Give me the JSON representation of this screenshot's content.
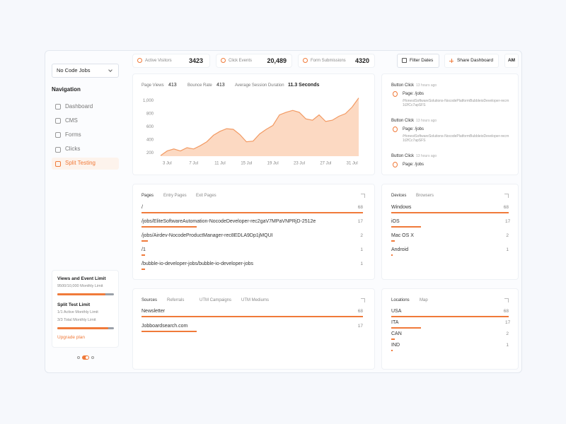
{
  "sidebar": {
    "workspace": "No Code Jobs",
    "nav_heading": "Navigation",
    "nav": [
      "Dashboard",
      "CMS",
      "Forms",
      "Clicks",
      "Split Testing"
    ],
    "active_nav": 4,
    "limits": [
      {
        "title": "Views and Event Limit",
        "items": [
          {
            "label": "9500/10,000 Monthly Limit",
            "used": 9500,
            "limit": 10000
          }
        ]
      },
      {
        "title": "Split Test Limit",
        "items": [
          {
            "label": "1/1 Active Monthly Limit"
          },
          {
            "label": "3/3 Total Monthly Limit",
            "used": 3,
            "limit": 3
          }
        ]
      }
    ],
    "upgrade": "Upgrade plan"
  },
  "toolbar": {
    "stats": [
      {
        "label": "Active Visitors",
        "value": 3423
      },
      {
        "label": "Click Events",
        "value": "20,489"
      },
      {
        "label": "Form Submissions",
        "value": 4320
      }
    ],
    "filter": "Filter Dates",
    "share": "Share Dashboard",
    "avatar": "AM"
  },
  "overview": {
    "metrics": [
      {
        "label": "Page Views",
        "value": 413
      },
      {
        "label": "Bounce Rate",
        "value": 413
      },
      {
        "label": "Average Session Duration",
        "value": "11.3 Seconds"
      }
    ]
  },
  "chart_data": {
    "type": "area",
    "color": "#f29a63",
    "fill": "#fcd9c2",
    "categories": [
      null,
      "3 Jul",
      null,
      null,
      null,
      "7 Jul",
      null,
      null,
      null,
      "11 Jul",
      null,
      null,
      null,
      "15 Jul",
      null,
      null,
      null,
      "19 Jul",
      null,
      null,
      null,
      "23 Jul",
      null,
      null,
      null,
      "27 Jul",
      null,
      null,
      null,
      "31 Jul",
      null
    ],
    "values": [
      160,
      230,
      260,
      230,
      280,
      260,
      310,
      370,
      470,
      530,
      570,
      560,
      480,
      370,
      380,
      490,
      560,
      620,
      780,
      820,
      850,
      820,
      720,
      700,
      780,
      680,
      700,
      760,
      800,
      900,
      1040
    ],
    "ylim": [
      150,
      1100
    ],
    "yticks": [
      200,
      400,
      600,
      800,
      {
        "value": 1000,
        "label": "1,000"
      }
    ],
    "grid": false
  },
  "activity": [
    {
      "event": "Button Click",
      "time": "13 hours ago",
      "page": "Page: /jobs",
      "path": "/HonestSoftwareSolutions-NocodePlatformBubbleioDeveloper-recrn1t2fCc7apSFS"
    },
    {
      "event": "Button Click",
      "time": "13 hours ago",
      "page": "Page: /jobs",
      "path": "/HonestSoftwareSolutions-NocodePlatformBubbleioDeveloper-recrn1t2fCc7apSFS"
    },
    {
      "event": "Button Click",
      "time": "13 hours ago",
      "page": "Page: /jobs",
      "path": "/HonestSoftwareSolutions-NocodePlatformBubbleioDeveloper-recrn1t2fCc7apSFS"
    }
  ],
  "pages": {
    "tabs": [
      "Pages",
      "Entry Pages",
      "Exit Pages"
    ],
    "rows": [
      {
        "label": "/",
        "value": 68
      },
      {
        "label": "/jobs/EliteSoftwareAutomation-NocodeDeveloper-rec2gaV7MPaVNPRjD-2512e",
        "value": 17
      },
      {
        "label": "/jobs/Airdev-NocodeProductManager-rec8EDLA9Dp1jMQUI",
        "value": 2
      },
      {
        "label": "/1",
        "value": 1
      },
      {
        "label": "/bubble-io-developer-jobs/bubble-io-developer-jobs",
        "value": 1
      }
    ]
  },
  "devices": {
    "tabs": [
      "Devices",
      "Browsers"
    ],
    "rows": [
      {
        "label": "Windows",
        "value": 68
      },
      {
        "label": "iOS",
        "value": 17
      },
      {
        "label": "Mac OS X",
        "value": 2
      },
      {
        "label": "Android",
        "value": 1
      }
    ]
  },
  "sources": {
    "tabs": [
      "Sources",
      "Referrals",
      "UTM Campaigns",
      "UTM Mediums"
    ],
    "rows": [
      {
        "label": "Newsletter",
        "value": 68
      },
      {
        "label": "Jobboardsearch.com",
        "value": 17
      }
    ]
  },
  "locations": {
    "tabs": [
      "Locations",
      "Map"
    ],
    "rows": [
      {
        "label": "USA",
        "value": 68
      },
      {
        "label": "ITA",
        "value": 17
      },
      {
        "label": "CAN",
        "value": 2
      },
      {
        "label": "IND",
        "value": 1
      }
    ]
  }
}
